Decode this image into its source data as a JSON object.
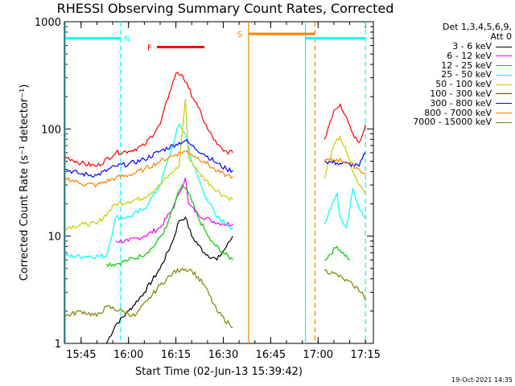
{
  "chart_data": {
    "type": "line",
    "title": "RHESSI Observing Summary Count Rates, Corrected",
    "xlabel": "Start Time (02-Jun-13 15:39:42)",
    "ylabel": "Corrected Count Rate (s⁻¹ detector⁻¹)",
    "yscale": "log",
    "ylim": [
      1,
      1000
    ],
    "xlim": [
      "15:39:42",
      "17:17:30"
    ],
    "x_ticks": [
      "15:45",
      "16:00",
      "16:15",
      "16:30",
      "16:45",
      "17:00",
      "17:15"
    ],
    "y_ticks": [
      "1",
      "10",
      "100",
      "1000"
    ],
    "legend_header": [
      "Det 1,3,4,5,6,9,",
      "Att 0"
    ],
    "series": [
      {
        "name": "3 - 6 keV",
        "color": "#000000",
        "points": [
          [
            "15:53",
            1.0
          ],
          [
            "15:56",
            1.5
          ],
          [
            "16:00",
            2.0
          ],
          [
            "16:05",
            3.0
          ],
          [
            "16:10",
            5.0
          ],
          [
            "16:14",
            9.0
          ],
          [
            "16:16",
            14
          ],
          [
            "16:18",
            15
          ],
          [
            "16:20",
            10
          ],
          [
            "16:24",
            7
          ],
          [
            "16:28",
            6
          ],
          [
            "16:31",
            8
          ],
          [
            "16:33",
            10
          ]
        ]
      },
      {
        "name": "6 - 12 keV",
        "color": "#ff00ff",
        "points": [
          [
            "15:56",
            9
          ],
          [
            "16:00",
            9
          ],
          [
            "16:05",
            10
          ],
          [
            "16:10",
            12
          ],
          [
            "16:14",
            18
          ],
          [
            "16:16",
            25
          ],
          [
            "16:18",
            35
          ],
          [
            "16:19",
            20
          ],
          [
            "16:22",
            16
          ],
          [
            "16:26",
            14
          ],
          [
            "16:30",
            13
          ],
          [
            "16:33",
            13
          ]
        ]
      },
      {
        "name": "12 - 25 keV",
        "color": "#00cc00",
        "points": [
          [
            "15:53",
            5.5
          ],
          [
            "15:56",
            5.5
          ],
          [
            "16:00",
            6
          ],
          [
            "16:04",
            6.5
          ],
          [
            "16:08",
            8
          ],
          [
            "16:12",
            12
          ],
          [
            "16:15",
            22
          ],
          [
            "16:17",
            30
          ],
          [
            "16:19",
            25
          ],
          [
            "16:22",
            15
          ],
          [
            "16:26",
            9
          ],
          [
            "16:30",
            7
          ],
          [
            "16:33",
            6
          ],
          [
            "17:02",
            6
          ],
          [
            "17:06",
            8
          ],
          [
            "17:10",
            6
          ]
        ]
      },
      {
        "name": "25 - 50 keV",
        "color": "#00ffff",
        "points": [
          [
            "15:40",
            6.5
          ],
          [
            "15:48",
            6.5
          ],
          [
            "15:53",
            6.5
          ],
          [
            "15:56",
            15
          ],
          [
            "16:00",
            15
          ],
          [
            "16:05",
            18
          ],
          [
            "16:10",
            30
          ],
          [
            "16:14",
            70
          ],
          [
            "16:16",
            110
          ],
          [
            "16:18",
            90
          ],
          [
            "16:20",
            50
          ],
          [
            "16:24",
            25
          ],
          [
            "16:28",
            15
          ],
          [
            "16:31",
            13
          ],
          [
            "16:33",
            12
          ],
          [
            "17:02",
            13
          ],
          [
            "17:04",
            18
          ],
          [
            "17:06",
            25
          ],
          [
            "17:07",
            15
          ],
          [
            "17:09",
            12
          ],
          [
            "17:11",
            28
          ],
          [
            "17:13",
            18
          ],
          [
            "17:15",
            15
          ]
        ]
      },
      {
        "name": "50 - 100 keV",
        "color": "#cccc00",
        "points": [
          [
            "15:40",
            12
          ],
          [
            "15:46",
            13
          ],
          [
            "15:50",
            13
          ],
          [
            "15:56",
            20
          ],
          [
            "16:00",
            21
          ],
          [
            "16:05",
            23
          ],
          [
            "16:10",
            30
          ],
          [
            "16:14",
            40
          ],
          [
            "16:16",
            45
          ],
          [
            "16:18",
            190
          ],
          [
            "16:19",
            55
          ],
          [
            "16:22",
            40
          ],
          [
            "16:26",
            30
          ],
          [
            "16:30",
            24
          ],
          [
            "16:33",
            22
          ],
          [
            "17:02",
            35
          ],
          [
            "17:05",
            70
          ],
          [
            "17:07",
            85
          ],
          [
            "17:09",
            60
          ],
          [
            "17:11",
            40
          ],
          [
            "17:13",
            30
          ],
          [
            "17:15",
            25
          ]
        ]
      },
      {
        "name": "100 - 300 keV",
        "color": "#ff0000",
        "points": [
          [
            "15:40",
            55
          ],
          [
            "15:45",
            48
          ],
          [
            "15:50",
            45
          ],
          [
            "15:56",
            60
          ],
          [
            "16:00",
            62
          ],
          [
            "16:05",
            70
          ],
          [
            "16:10",
            110
          ],
          [
            "16:13",
            220
          ],
          [
            "16:15",
            330
          ],
          [
            "16:17",
            320
          ],
          [
            "16:19",
            240
          ],
          [
            "16:22",
            160
          ],
          [
            "16:25",
            100
          ],
          [
            "16:28",
            72
          ],
          [
            "16:30",
            62
          ],
          [
            "16:33",
            60
          ],
          [
            "17:02",
            80
          ],
          [
            "17:05",
            150
          ],
          [
            "17:07",
            170
          ],
          [
            "17:09",
            130
          ],
          [
            "17:11",
            90
          ],
          [
            "17:13",
            75
          ],
          [
            "17:15",
            110
          ]
        ]
      },
      {
        "name": "300 - 800 keV",
        "color": "#0000ff",
        "points": [
          [
            "15:40",
            42
          ],
          [
            "15:45",
            38
          ],
          [
            "15:50",
            37
          ],
          [
            "15:56",
            45
          ],
          [
            "16:00",
            47
          ],
          [
            "16:05",
            52
          ],
          [
            "16:10",
            62
          ],
          [
            "16:15",
            72
          ],
          [
            "16:18",
            78
          ],
          [
            "16:20",
            70
          ],
          [
            "16:24",
            58
          ],
          [
            "16:28",
            48
          ],
          [
            "16:31",
            42
          ],
          [
            "16:33",
            41
          ],
          [
            "17:02",
            50
          ],
          [
            "17:06",
            48
          ],
          [
            "17:10",
            47
          ],
          [
            "17:13",
            45
          ],
          [
            "17:15",
            60
          ]
        ]
      },
      {
        "name": "800 - 7000 keV",
        "color": "#ff8000",
        "points": [
          [
            "15:40",
            35
          ],
          [
            "15:45",
            31
          ],
          [
            "15:50",
            30
          ],
          [
            "15:56",
            35
          ],
          [
            "16:00",
            37
          ],
          [
            "16:05",
            42
          ],
          [
            "16:10",
            50
          ],
          [
            "16:15",
            58
          ],
          [
            "16:18",
            62
          ],
          [
            "16:20",
            58
          ],
          [
            "16:24",
            50
          ],
          [
            "16:28",
            40
          ],
          [
            "16:31",
            37
          ],
          [
            "16:33",
            36
          ],
          [
            "17:02",
            50
          ],
          [
            "17:06",
            52
          ],
          [
            "17:10",
            48
          ],
          [
            "17:13",
            42
          ],
          [
            "17:15",
            38
          ]
        ]
      },
      {
        "name": "7000 - 15000 keV",
        "color": "#808000",
        "points": [
          [
            "15:40",
            1.8
          ],
          [
            "15:45",
            2.0
          ],
          [
            "15:50",
            1.8
          ],
          [
            "15:53",
            2.2
          ],
          [
            "15:58",
            2.0
          ],
          [
            "16:02",
            1.8
          ],
          [
            "16:06",
            2.5
          ],
          [
            "16:10",
            3.5
          ],
          [
            "16:14",
            4.5
          ],
          [
            "16:17",
            5.0
          ],
          [
            "16:20",
            4.8
          ],
          [
            "16:24",
            3.5
          ],
          [
            "16:28",
            2.0
          ],
          [
            "16:32",
            1.5
          ],
          [
            "16:33",
            1.4
          ],
          [
            "17:02",
            4.8
          ],
          [
            "17:05",
            4.5
          ],
          [
            "17:08",
            4.0
          ],
          [
            "17:11",
            3.5
          ],
          [
            "17:14",
            3.0
          ],
          [
            "17:15",
            2.5
          ]
        ]
      }
    ],
    "annotations": [
      {
        "text": "N",
        "color": "#00ffff",
        "time": "15:57:30"
      },
      {
        "text": "F",
        "color": "#ff0000",
        "start": "16:09",
        "end": "16:24"
      },
      {
        "text": "S",
        "color": "#ff8000",
        "start": "16:38",
        "end": "16:59"
      }
    ],
    "vertical_markers": [
      {
        "time": "15:40",
        "color": "#00ffff",
        "style": "solid"
      },
      {
        "time": "15:57:30",
        "color": "#00ffff",
        "style": "dashed"
      },
      {
        "time": "16:38",
        "color": "#ff8000",
        "style": "solid"
      },
      {
        "time": "16:56",
        "color": "#00ffff",
        "style": "solid"
      },
      {
        "time": "16:59",
        "color": "#ff8000",
        "style": "dashed"
      },
      {
        "time": "17:15",
        "color": "#00ffff",
        "style": "dashed"
      }
    ],
    "status_bars": [
      {
        "color": "#00ffff",
        "start": "15:40",
        "end": "15:57:30",
        "level": 700
      },
      {
        "color": "#ff8000",
        "start": "16:38",
        "end": "16:59",
        "level": 770
      },
      {
        "color": "#00ffff",
        "start": "16:56",
        "end": "17:15",
        "level": 700
      }
    ]
  },
  "footer": {
    "timestamp": "19-Oct-2021 14:35"
  }
}
